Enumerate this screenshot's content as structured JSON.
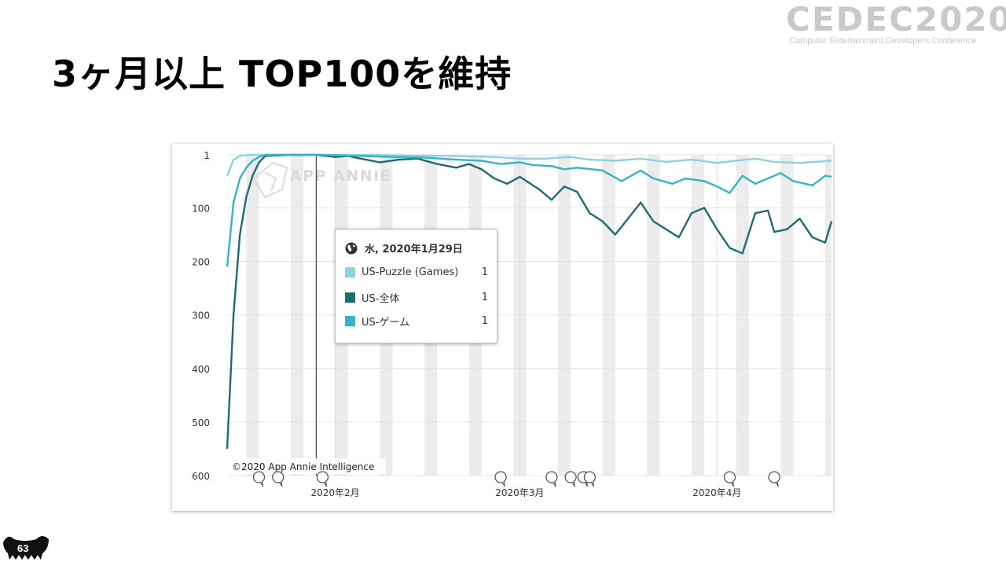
{
  "slide": {
    "title": "3ヶ月以上 TOP100を維持",
    "page_number": "63"
  },
  "logo": {
    "main": "CEDEC2020",
    "sub": "Computer Entertainment Developers Conference"
  },
  "chart": {
    "watermark": "APP ANNIE",
    "copyright": "©2020 App Annie Intelligence",
    "tooltip": {
      "date": "水, 2020年1月29日",
      "rows": [
        {
          "label": "US-Puzzle (Games)",
          "value": "1",
          "color": "#8dd3dc"
        },
        {
          "label": "US-全体",
          "value": "1",
          "color": "#1f6b73"
        },
        {
          "label": "US-ゲーム",
          "value": "1",
          "color": "#37b3c6"
        }
      ]
    }
  },
  "chart_data": {
    "type": "line",
    "title": "",
    "xlabel": "",
    "ylabel": "",
    "ylim": [
      600,
      1
    ],
    "y_inverted": true,
    "y_ticks": [
      1,
      100,
      200,
      300,
      400,
      500,
      600
    ],
    "x_start": "2020-01-15",
    "x_end": "2020-04-19",
    "x_ticks": [
      {
        "date": "2020-02-01",
        "label": "2020年2月"
      },
      {
        "date": "2020-03-01",
        "label": "2020年3月"
      },
      {
        "date": "2020-04-01",
        "label": "2020年4月"
      }
    ],
    "crosshair_date": "2020-01-29",
    "event_marker_dates": [
      "2020-01-20",
      "2020-01-23",
      "2020-01-30",
      "2020-02-27",
      "2020-03-06",
      "2020-03-09",
      "2020-03-11",
      "2020-03-12",
      "2020-04-03",
      "2020-04-10"
    ],
    "weekend_band_dates": [
      "2020-01-18",
      "2020-01-25",
      "2020-02-01",
      "2020-02-08",
      "2020-02-15",
      "2020-02-22",
      "2020-02-29",
      "2020-03-07",
      "2020-03-14",
      "2020-03-21",
      "2020-03-28",
      "2020-04-04",
      "2020-04-11",
      "2020-04-18"
    ],
    "series": [
      {
        "name": "US-Puzzle (Games)",
        "color": "#8dd3dc",
        "points": [
          [
            "2020-01-15",
            40
          ],
          [
            "2020-01-16",
            10
          ],
          [
            "2020-01-17",
            3
          ],
          [
            "2020-01-18",
            1
          ],
          [
            "2020-01-22",
            1
          ],
          [
            "2020-01-29",
            1
          ],
          [
            "2020-02-05",
            1
          ],
          [
            "2020-02-12",
            2
          ],
          [
            "2020-02-19",
            3
          ],
          [
            "2020-02-26",
            5
          ],
          [
            "2020-03-01",
            8
          ],
          [
            "2020-03-05",
            8
          ],
          [
            "2020-03-09",
            5
          ],
          [
            "2020-03-12",
            10
          ],
          [
            "2020-03-16",
            12
          ],
          [
            "2020-03-20",
            8
          ],
          [
            "2020-03-24",
            14
          ],
          [
            "2020-03-28",
            10
          ],
          [
            "2020-04-01",
            16
          ],
          [
            "2020-04-04",
            12
          ],
          [
            "2020-04-07",
            8
          ],
          [
            "2020-04-10",
            14
          ],
          [
            "2020-04-14",
            16
          ],
          [
            "2020-04-19",
            12
          ]
        ]
      },
      {
        "name": "US-全体",
        "color": "#1f6b73",
        "points": [
          [
            "2020-01-15",
            550
          ],
          [
            "2020-01-16",
            300
          ],
          [
            "2020-01-17",
            150
          ],
          [
            "2020-01-18",
            80
          ],
          [
            "2020-01-19",
            40
          ],
          [
            "2020-01-20",
            15
          ],
          [
            "2020-01-21",
            3
          ],
          [
            "2020-01-23",
            2
          ],
          [
            "2020-01-25",
            1
          ],
          [
            "2020-01-29",
            1
          ],
          [
            "2020-02-01",
            5
          ],
          [
            "2020-02-03",
            3
          ],
          [
            "2020-02-05",
            8
          ],
          [
            "2020-02-08",
            15
          ],
          [
            "2020-02-11",
            10
          ],
          [
            "2020-02-14",
            8
          ],
          [
            "2020-02-17",
            18
          ],
          [
            "2020-02-20",
            25
          ],
          [
            "2020-02-22",
            18
          ],
          [
            "2020-02-24",
            28
          ],
          [
            "2020-02-26",
            45
          ],
          [
            "2020-02-28",
            55
          ],
          [
            "2020-03-01",
            42
          ],
          [
            "2020-03-04",
            65
          ],
          [
            "2020-03-06",
            85
          ],
          [
            "2020-03-08",
            60
          ],
          [
            "2020-03-10",
            70
          ],
          [
            "2020-03-12",
            110
          ],
          [
            "2020-03-14",
            125
          ],
          [
            "2020-03-16",
            150
          ],
          [
            "2020-03-18",
            120
          ],
          [
            "2020-03-20",
            90
          ],
          [
            "2020-03-22",
            125
          ],
          [
            "2020-03-24",
            140
          ],
          [
            "2020-03-26",
            155
          ],
          [
            "2020-03-28",
            110
          ],
          [
            "2020-03-30",
            100
          ],
          [
            "2020-04-01",
            140
          ],
          [
            "2020-04-03",
            175
          ],
          [
            "2020-04-05",
            185
          ],
          [
            "2020-04-07",
            110
          ],
          [
            "2020-04-09",
            105
          ],
          [
            "2020-04-10",
            145
          ],
          [
            "2020-04-12",
            140
          ],
          [
            "2020-04-14",
            120
          ],
          [
            "2020-04-16",
            155
          ],
          [
            "2020-04-18",
            165
          ],
          [
            "2020-04-19",
            125
          ]
        ]
      },
      {
        "name": "US-ゲーム",
        "color": "#37b3c6",
        "points": [
          [
            "2020-01-15",
            210
          ],
          [
            "2020-01-16",
            90
          ],
          [
            "2020-01-17",
            45
          ],
          [
            "2020-01-18",
            25
          ],
          [
            "2020-01-19",
            12
          ],
          [
            "2020-01-20",
            5
          ],
          [
            "2020-01-21",
            1
          ],
          [
            "2020-01-29",
            1
          ],
          [
            "2020-02-05",
            3
          ],
          [
            "2020-02-10",
            5
          ],
          [
            "2020-02-15",
            6
          ],
          [
            "2020-02-20",
            10
          ],
          [
            "2020-02-24",
            12
          ],
          [
            "2020-02-27",
            18
          ],
          [
            "2020-03-01",
            15
          ],
          [
            "2020-03-03",
            20
          ],
          [
            "2020-03-06",
            22
          ],
          [
            "2020-03-08",
            28
          ],
          [
            "2020-03-10",
            25
          ],
          [
            "2020-03-14",
            30
          ],
          [
            "2020-03-17",
            50
          ],
          [
            "2020-03-20",
            30
          ],
          [
            "2020-03-22",
            45
          ],
          [
            "2020-03-25",
            55
          ],
          [
            "2020-03-27",
            45
          ],
          [
            "2020-03-30",
            50
          ],
          [
            "2020-04-01",
            60
          ],
          [
            "2020-04-03",
            72
          ],
          [
            "2020-04-05",
            40
          ],
          [
            "2020-04-07",
            55
          ],
          [
            "2020-04-09",
            45
          ],
          [
            "2020-04-11",
            35
          ],
          [
            "2020-04-13",
            50
          ],
          [
            "2020-04-16",
            58
          ],
          [
            "2020-04-18",
            40
          ],
          [
            "2020-04-19",
            42
          ]
        ]
      }
    ]
  }
}
